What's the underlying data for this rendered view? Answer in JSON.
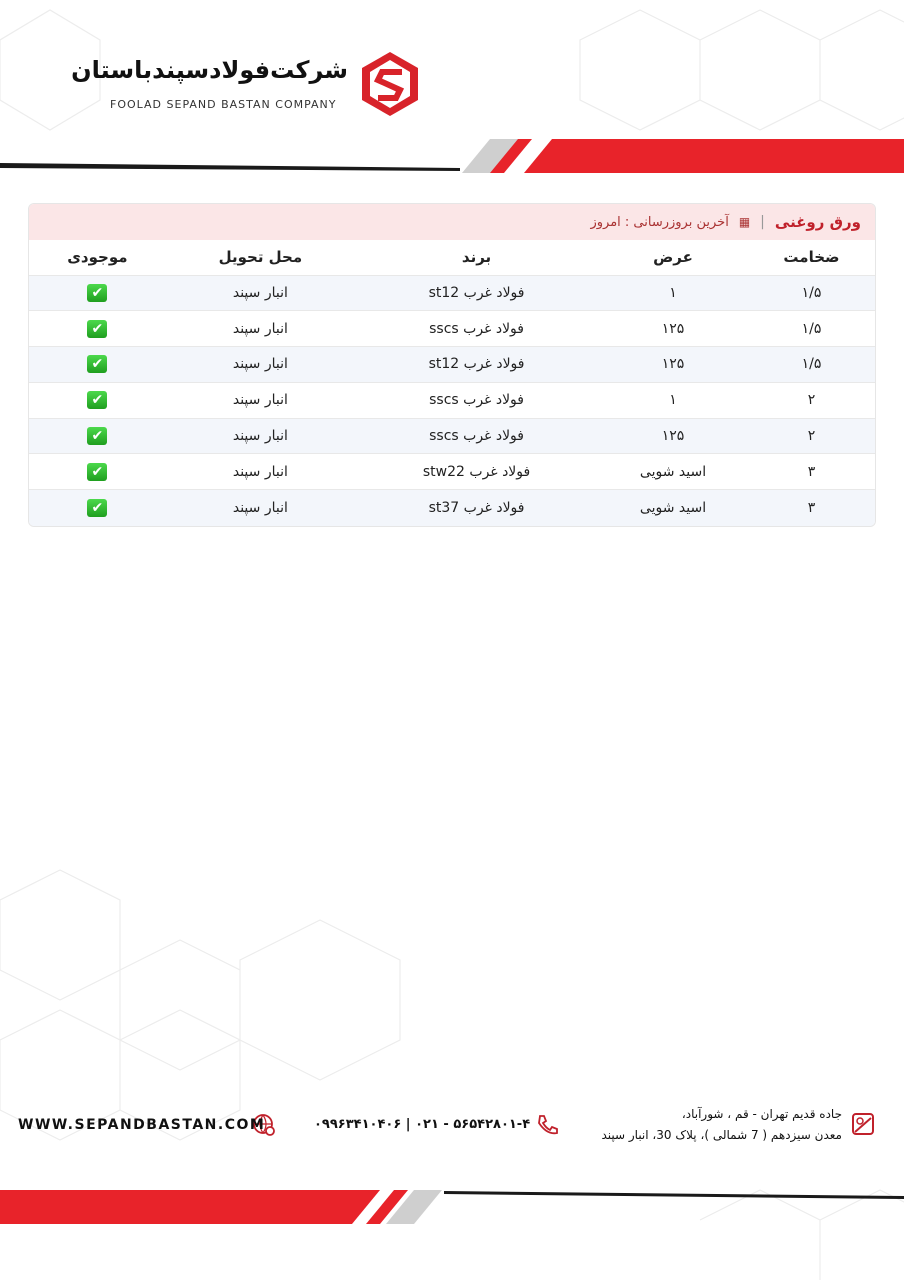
{
  "header": {
    "company_fa": "شرکت‌فولادسپندباستان",
    "company_en": "FOOLAD SEPAND BASTAN COMPANY"
  },
  "table": {
    "title": "ورق روغنی",
    "updated": "آخرین بروزرسانی : امروز",
    "columns": [
      "ضخامت",
      "عرض",
      "برند",
      "محل تحویل",
      "موجودی"
    ],
    "rows": [
      [
        "۱/۵",
        "۱",
        "فولاد غرب st12",
        "انبار سپند",
        "✔"
      ],
      [
        "۱/۵",
        "۱۲۵",
        "فولاد غرب sscs",
        "انبار سپند",
        "✔"
      ],
      [
        "۱/۵",
        "۱۲۵",
        "فولاد غرب st12",
        "انبار سپند",
        "✔"
      ],
      [
        "۲",
        "۱",
        "فولاد غرب sscs",
        "انبار سپند",
        "✔"
      ],
      [
        "۲",
        "۱۲۵",
        "فولاد غرب sscs",
        "انبار سپند",
        "✔"
      ],
      [
        "۳",
        "اسید شویی",
        "فولاد غرب stw22",
        "انبار سپند",
        "✔"
      ],
      [
        "۳",
        "اسید شویی",
        "فولاد غرب st37",
        "انبار سپند",
        "✔"
      ]
    ]
  },
  "footer": {
    "address_1": "جاده قدیم تهران - قم ، شورآباد،",
    "address_2": "معدن سیزدهم ( 7 شمالی )، پلاک 30، انبار سپند",
    "phone": "۰۹۹۶۳۴۱۰۴۰۶ | ۰۲۱ - ۵۶۵۴۲۸۰۱-۴",
    "website": "WWW.SEPANDBASTAN.COM"
  },
  "colors": {
    "brand_red": "#e8232a",
    "dark": "#1a1a1a",
    "gray": "#cfcfcf"
  }
}
